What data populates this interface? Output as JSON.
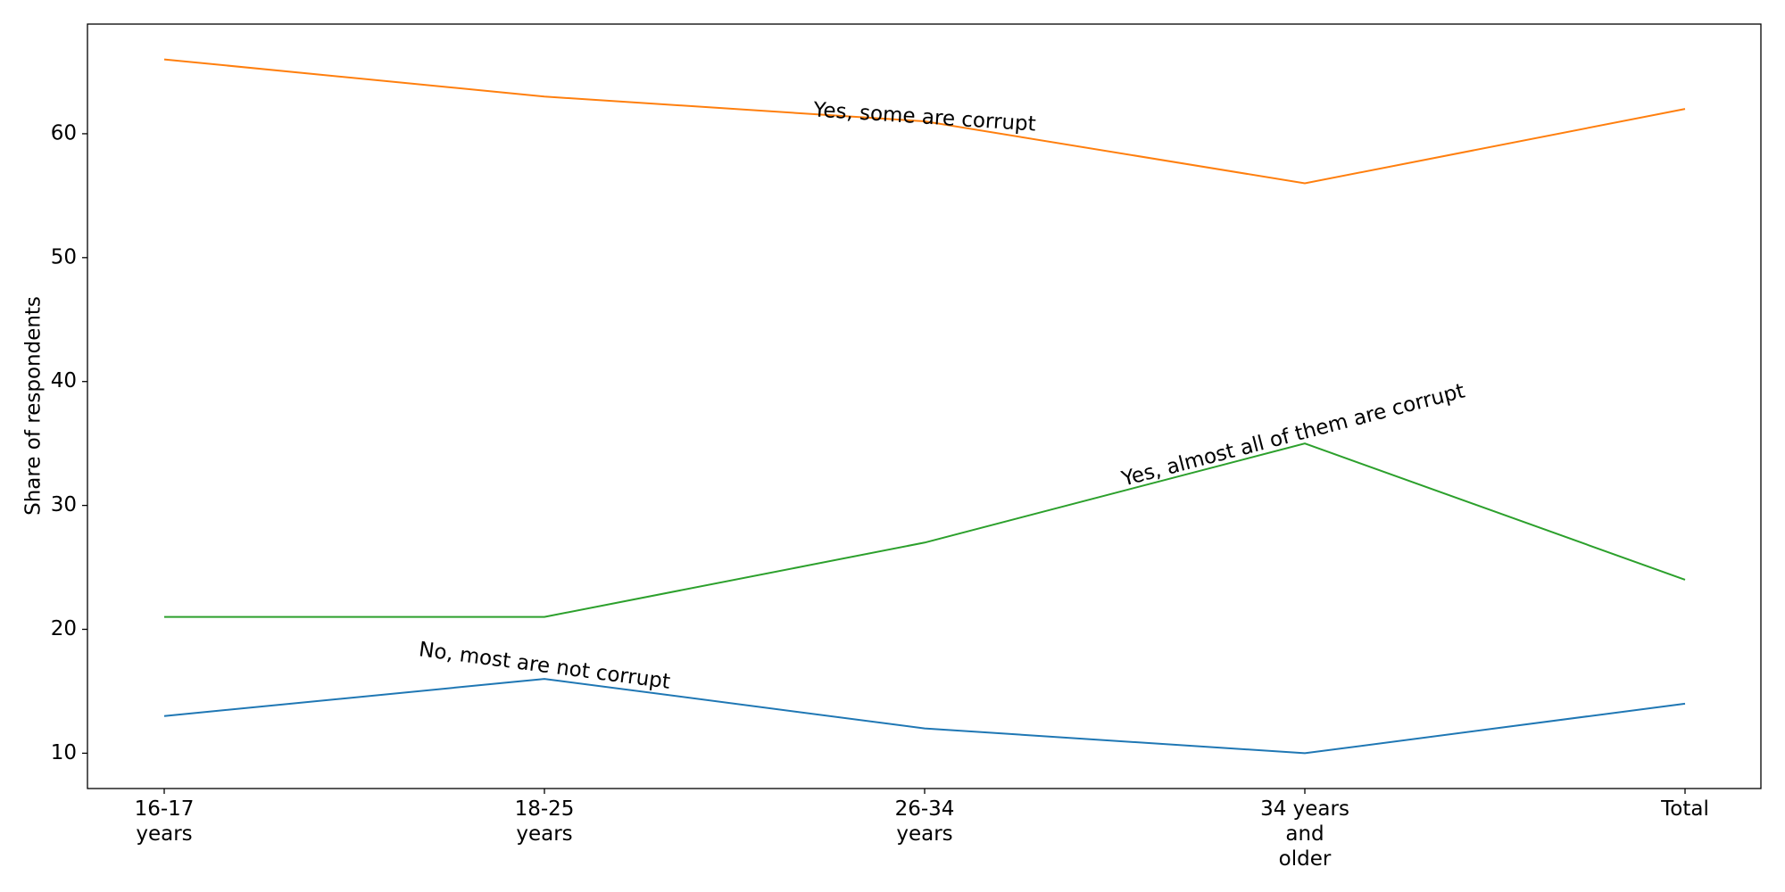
{
  "chart_data": {
    "type": "line",
    "y_label": "Share of respondents",
    "categories": [
      "16-17\nyears",
      "18-25\nyears",
      "26-34\nyears",
      "34 years\nand\nolder",
      "Total"
    ],
    "series": [
      {
        "name": "No, most are not corrupt",
        "color": "#1f77b4",
        "values": [
          13,
          16,
          12,
          10,
          14
        ]
      },
      {
        "name": "Yes, some are corrupt",
        "color": "#ff7f0e",
        "values": [
          66,
          63,
          61,
          56,
          62
        ]
      },
      {
        "name": "Yes, almost all of them are corrupt",
        "color": "#2ca02c",
        "values": [
          21,
          21,
          27,
          35,
          24
        ]
      }
    ],
    "ylim": [
      7.15,
      68.85
    ],
    "yticks": [
      10,
      20,
      30,
      40,
      50,
      60
    ],
    "grid": false
  }
}
